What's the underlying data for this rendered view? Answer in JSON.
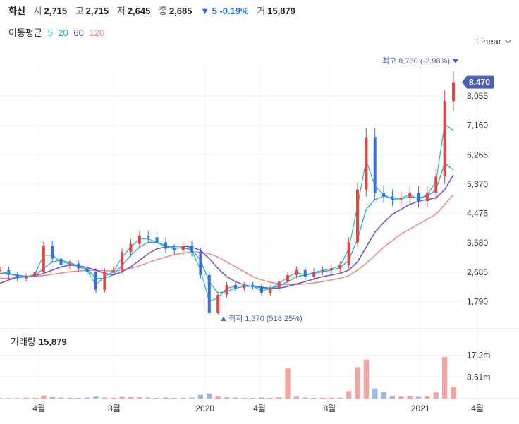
{
  "header": {
    "name": "화신",
    "open_label": "시",
    "open": "2,715",
    "high_label": "고",
    "high": "2,715",
    "low_label": "저",
    "low": "2,645",
    "close_label": "종",
    "close": "2,685",
    "change": "▼ 5 -0.19%",
    "volume_label": "거",
    "volume": "15,879"
  },
  "ma_legend": {
    "title": "이동평균",
    "items": [
      "5",
      "20",
      "60",
      "120"
    ]
  },
  "scale_button": "Linear",
  "volume_panel": {
    "title": "거래량",
    "value": "15,879"
  },
  "colors": {
    "up": "#e64545",
    "down": "#3a6fd8",
    "ma5": "#26b5c4",
    "ma20": "#1fa8d8",
    "ma60": "#6a4fd6",
    "ma120": "#f08a84"
  },
  "chart_data": [
    {
      "type": "line",
      "title": "",
      "x_ticks": [
        "4월",
        "8월",
        "2020",
        "4월",
        "8월",
        "2021",
        "4월"
      ],
      "y_ticks": [
        "1,790",
        "2,685",
        "3,580",
        "4,475",
        "5,370",
        "6,265",
        "7,160",
        "8,055"
      ],
      "ylim": [
        1200,
        9000
      ],
      "last_price": "8,470",
      "high_annotation": "최고 8,730 (-2.98%)",
      "low_annotation": "최저 1,370 (518.25%)",
      "series": [
        {
          "name": "price",
          "values": [
            2750,
            2600,
            2500,
            2550,
            2700,
            3500,
            3100,
            2900,
            2950,
            2800,
            2700,
            2150,
            2700,
            2750,
            3300,
            3550,
            3800,
            3750,
            3600,
            3400,
            3350,
            3500,
            3300,
            2600,
            1450,
            2000,
            2300,
            2200,
            2300,
            2250,
            2050,
            2200,
            2400,
            2600,
            2750,
            2550,
            2700,
            2750,
            2800,
            2900,
            3600,
            5200,
            6800,
            5100,
            5000,
            4900,
            4950,
            5100,
            4850,
            5100,
            5600,
            7900,
            8470
          ]
        },
        {
          "name": "ma5",
          "values": [
            2700,
            2650,
            2560,
            2540,
            2620,
            3200,
            3200,
            3000,
            2950,
            2850,
            2730,
            2300,
            2550,
            2700,
            3150,
            3450,
            3700,
            3700,
            3600,
            3450,
            3400,
            3450,
            3350,
            2750,
            1800,
            1900,
            2200,
            2250,
            2280,
            2260,
            2120,
            2180,
            2350,
            2530,
            2680,
            2600,
            2680,
            2740,
            2790,
            2880,
            3400,
            4700,
            6100,
            5300,
            5050,
            4900,
            4930,
            5050,
            4900,
            5050,
            5450,
            7200,
            7000
          ]
        },
        {
          "name": "ma20",
          "values": [
            2650,
            2640,
            2600,
            2560,
            2560,
            2800,
            3000,
            3050,
            2980,
            2880,
            2780,
            2500,
            2500,
            2600,
            2900,
            3200,
            3450,
            3600,
            3600,
            3500,
            3430,
            3420,
            3380,
            3050,
            2400,
            2050,
            2100,
            2200,
            2250,
            2260,
            2200,
            2200,
            2260,
            2400,
            2550,
            2600,
            2650,
            2700,
            2750,
            2820,
            3050,
            3700,
            4600,
            4900,
            5000,
            4950,
            4920,
            4980,
            4950,
            5000,
            5200,
            6000,
            5800
          ]
        },
        {
          "name": "ma60",
          "values": [
            2350,
            2450,
            2530,
            2560,
            2580,
            2650,
            2750,
            2850,
            2900,
            2880,
            2830,
            2750,
            2650,
            2600,
            2700,
            2850,
            3050,
            3250,
            3400,
            3450,
            3480,
            3480,
            3450,
            3350,
            3100,
            2800,
            2550,
            2400,
            2300,
            2250,
            2230,
            2200,
            2200,
            2250,
            2330,
            2400,
            2480,
            2550,
            2600,
            2650,
            2750,
            3000,
            3450,
            3900,
            4200,
            4450,
            4600,
            4750,
            4850,
            4900,
            4950,
            5200,
            5650
          ]
        },
        {
          "name": "ma120",
          "values": [
            2500,
            2500,
            2520,
            2540,
            2560,
            2580,
            2620,
            2660,
            2700,
            2720,
            2740,
            2740,
            2730,
            2720,
            2740,
            2800,
            2880,
            2980,
            3070,
            3150,
            3220,
            3270,
            3300,
            3300,
            3250,
            3150,
            3000,
            2850,
            2700,
            2550,
            2450,
            2380,
            2330,
            2300,
            2310,
            2330,
            2360,
            2400,
            2450,
            2500,
            2580,
            2750,
            2950,
            3200,
            3450,
            3650,
            3850,
            4000,
            4150,
            4300,
            4450,
            4750,
            5050
          ]
        }
      ]
    },
    {
      "type": "bar",
      "title": "거래량",
      "y_ticks": [
        "8.61m",
        "17.2m"
      ],
      "ylim": [
        0,
        21
      ],
      "values": [
        0.3,
        0.2,
        0.2,
        0.4,
        0.3,
        1.2,
        0.6,
        0.4,
        0.3,
        0.3,
        0.4,
        0.8,
        0.4,
        0.3,
        0.7,
        0.6,
        0.5,
        0.4,
        0.3,
        0.4,
        0.3,
        0.3,
        0.4,
        1.5,
        2.0,
        0.8,
        0.5,
        0.4,
        0.3,
        0.3,
        0.4,
        0.3,
        0.5,
        12.0,
        0.8,
        0.4,
        0.3,
        0.3,
        0.3,
        0.4,
        3.0,
        12.5,
        15.5,
        4.0,
        2.5,
        1.2,
        0.8,
        0.9,
        0.7,
        0.9,
        2.5,
        16.5,
        4.5
      ]
    }
  ]
}
